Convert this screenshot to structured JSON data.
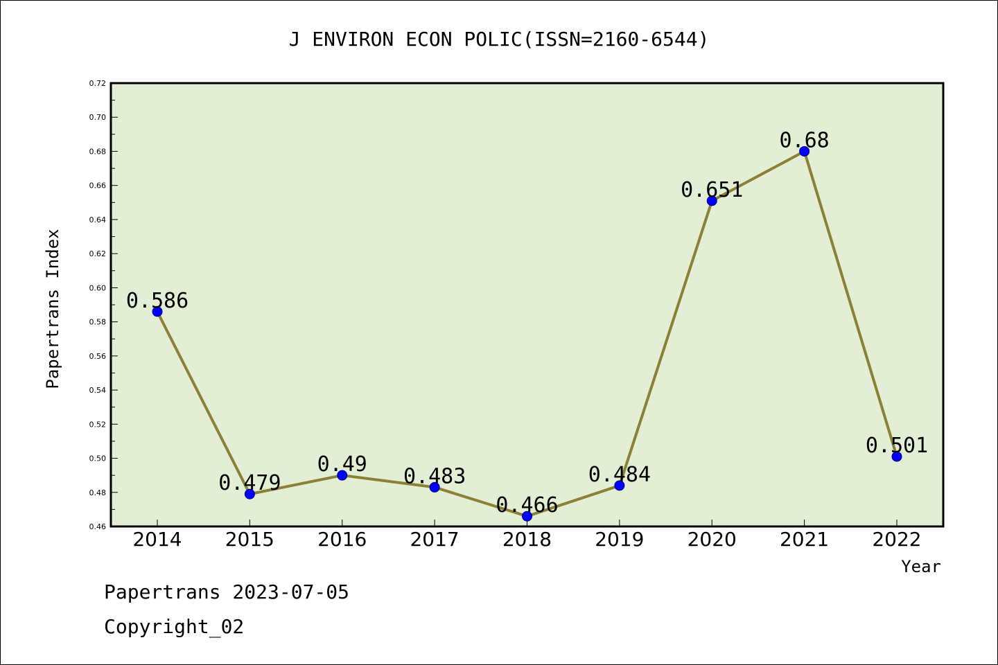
{
  "chart_data": {
    "type": "line",
    "title": "J ENVIRON ECON POLIC(ISSN=2160-6544)",
    "xlabel": "Year",
    "ylabel": "Papertrans Index",
    "categories": [
      "2014",
      "2015",
      "2016",
      "2017",
      "2018",
      "2019",
      "2020",
      "2021",
      "2022"
    ],
    "series": [
      {
        "values": [
          0.586,
          0.479,
          0.49,
          0.483,
          0.466,
          0.484,
          0.651,
          0.68,
          0.501
        ]
      }
    ],
    "data_labels": [
      "0.586",
      "0.479",
      "0.49",
      "0.483",
      "0.466",
      "0.484",
      "0.651",
      "0.68",
      "0.501"
    ],
    "ylim": [
      0.46,
      0.72
    ],
    "y_ticks": [
      "0.46",
      "0.48",
      "0.50",
      "0.52",
      "0.54",
      "0.56",
      "0.58",
      "0.60",
      "0.62",
      "0.64",
      "0.66",
      "0.68",
      "0.70",
      "0.72"
    ],
    "grid": false,
    "colors": {
      "plot_bg": "#e2efd4",
      "line": "#8b8035",
      "marker": "#0000ff"
    }
  },
  "footer": {
    "line1": "Papertrans 2023-07-05",
    "line2": "Copyright_02"
  }
}
